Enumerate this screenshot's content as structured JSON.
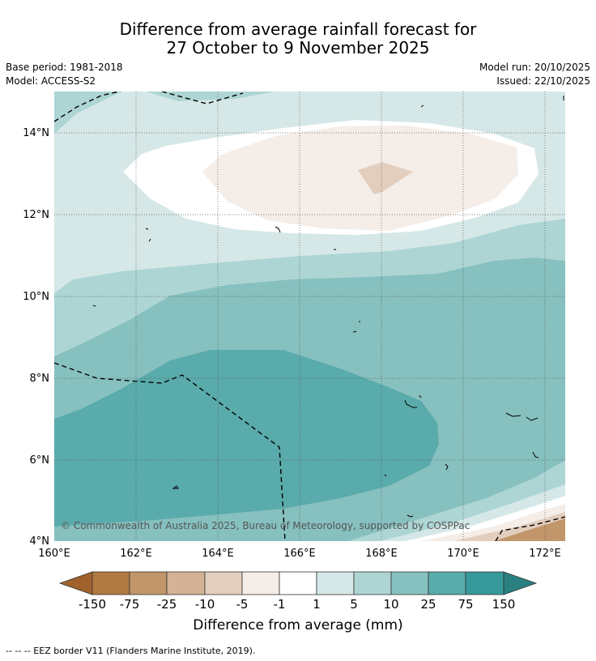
{
  "title": {
    "line1": "Difference from average rainfall forecast for",
    "line2": "27 October to 9 November 2025"
  },
  "meta": {
    "base_period": "Base period: 1981-2018",
    "model": "Model: ACCESS-S2",
    "model_run": "Model run: 20/10/2025",
    "issued": "Issued: 22/10/2025"
  },
  "axes": {
    "lat_labels": [
      "14°N",
      "12°N",
      "10°N",
      "8°N",
      "6°N",
      "4°N"
    ],
    "lon_labels": [
      "160°E",
      "162°E",
      "164°E",
      "166°E",
      "168°E",
      "170°E",
      "172°E"
    ]
  },
  "copyright": "© Commonwealth of Australia 2025, Bureau of Meteorology, supported by COSPPac",
  "colorbar": {
    "title": "Difference from average (mm)",
    "labels": [
      "-150",
      "-75",
      "-25",
      "-10",
      "-5",
      "-1",
      "1",
      "5",
      "10",
      "25",
      "75",
      "150"
    ],
    "colors": [
      "#a0622a",
      "#b07a42",
      "#c0966a",
      "#d3b295",
      "#e3cebe",
      "#f4ede8",
      "#ffffff",
      "#d5e8e7",
      "#add5d4",
      "#86c0bf",
      "#5aabab",
      "#36999a",
      "#2a8080"
    ]
  },
  "footer": "--  --  -- EEZ border V11 (Flanders Marine Institute, 2019)."
}
